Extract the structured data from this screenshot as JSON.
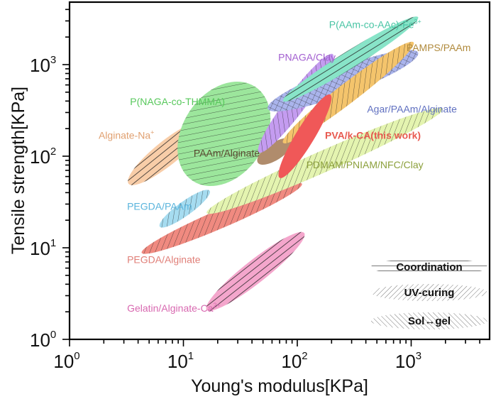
{
  "chart_data": {
    "type": "scatter",
    "subtype": "ashby-region-plot",
    "title": "",
    "xlabel": "Young's modulus[KPa]",
    "ylabel": "Tensile strength[KPa]",
    "xscale": "log",
    "yscale": "log",
    "xlim": [
      1,
      5000
    ],
    "ylim": [
      1,
      4000
    ],
    "xticks": [
      {
        "value": 1,
        "base": "10",
        "exp": "0"
      },
      {
        "value": 10,
        "base": "10",
        "exp": "1"
      },
      {
        "value": 100,
        "base": "10",
        "exp": "2"
      },
      {
        "value": 1000,
        "base": "10",
        "exp": "3"
      }
    ],
    "yticks": [
      {
        "value": 1,
        "base": "10",
        "exp": "0"
      },
      {
        "value": 10,
        "base": "10",
        "exp": "1"
      },
      {
        "value": 100,
        "base": "10",
        "exp": "2"
      },
      {
        "value": 1000,
        "base": "10",
        "exp": "3"
      }
    ],
    "grid": false,
    "legend": {
      "placement": "bottom-right",
      "entries": [
        {
          "label": "Coordination",
          "pattern": "horizontal"
        },
        {
          "label": "UV-curing",
          "pattern": "backslash"
        },
        {
          "label": "Sol↔gel",
          "pattern": "slash"
        }
      ]
    },
    "regions": [
      {
        "name": "PEGDA/Alginate",
        "label": "PEGDA/Alginate",
        "color": "#f08a80",
        "label_color": "#e07f78",
        "pattern": "backslash",
        "x_range": [
          4.3,
          110
        ],
        "y_range": [
          8.8,
          50
        ],
        "label_at": [
          3.2,
          6.8
        ]
      },
      {
        "name": "Gelatin/Alginate-Ca2+",
        "label": "Gelatin/Alginate-Ca",
        "sup": "2+",
        "color": "#f4a6cc",
        "label_color": "#d868b0",
        "pattern": "horizontal",
        "x_range": [
          16,
          115
        ],
        "y_range": [
          2.1,
          14.5
        ],
        "label_at": [
          3.2,
          2.0
        ]
      },
      {
        "name": "PEGDA/PAAm",
        "label": "PEGDA/PAAm",
        "color": "#a6dcf0",
        "label_color": "#5ab4dc",
        "pattern": "backslash",
        "x_range": [
          6.2,
          17
        ],
        "y_range": [
          17,
          42
        ],
        "label_at": [
          3.2,
          26
        ]
      },
      {
        "name": "PDMAM/PNIAM/NFC/Clay",
        "label": "PDMAM/PNIAM/NFC/Clay",
        "color": "#e4f4b0",
        "label_color": "#8ca03c",
        "pattern": "backslash",
        "x_range": [
          16,
          1900
        ],
        "y_range": [
          24,
          330
        ],
        "label_at": [
          120,
          74
        ]
      },
      {
        "name": "Alginate-Na+",
        "label": "Alginate-Na",
        "sup": "+",
        "color": "#f8cda8",
        "label_color": "#e0a070",
        "pattern": "horizontal",
        "x_range": [
          3.3,
          15.5
        ],
        "y_range": [
          50,
          235
        ],
        "label_at": [
          1.8,
          155
        ]
      },
      {
        "name": "P(NAGA-co-THMMA)",
        "label": "P(NAGA-co-THMMA)",
        "color": "#9ce69c",
        "label_color": "#58c85c",
        "pattern": "slash",
        "x_range": [
          12,
          43
        ],
        "y_range": [
          54,
          570
        ],
        "label_at": [
          3.4,
          360
        ]
      },
      {
        "name": "PAAm/Alginate",
        "label": "PAAm/Alginate",
        "color": "#b08c6c",
        "label_color": "#5a4a30",
        "pattern": "none",
        "x_range": [
          45,
          90
        ],
        "y_range": [
          85,
          150
        ],
        "label_at": [
          12.3,
          99
        ]
      },
      {
        "name": "PNAGA/Clay",
        "label": "PNAGA/Clay",
        "color": "#c49cf0",
        "label_color": "#a25ed0",
        "pattern": "backslash",
        "x_range": [
          46,
          205
        ],
        "y_range": [
          110,
          1300
        ],
        "label_at": [
          68,
          1100
        ]
      },
      {
        "name": "Agar/PAAm/Alginate",
        "label": "Agar/PAAm/Alginate",
        "color": "#aab4ec",
        "label_color": "#6070c0",
        "pattern": "crosshatch",
        "x_range": [
          55,
          1150
        ],
        "y_range": [
          330,
          1350
        ],
        "label_at": [
          410,
          300
        ]
      },
      {
        "name": "P(AAm-co-AAc)-Fe3+",
        "label": "P(AAm-co-AAc)-Fe",
        "sup": "3+",
        "color": "#88e4c8",
        "label_color": "#48c4a4",
        "pattern": "horizontal",
        "x_range": [
          75,
          1150
        ],
        "y_range": [
          400,
          3300
        ],
        "label_at": [
          190,
          2500
        ]
      },
      {
        "name": "PAMPS/PAAm",
        "label": "PAMPS/PAAm",
        "color": "#f4c46c",
        "label_color": "#b08a3c",
        "pattern": "backslash",
        "x_range": [
          75,
          1050
        ],
        "y_range": [
          140,
          1750
        ],
        "label_at": [
          910,
          1400
        ]
      },
      {
        "name": "PVA/k-CA(this work)",
        "label": "PVA/k-CA(this work)",
        "color": "#f05858",
        "label_color": "#e85a50",
        "pattern": "none",
        "bold": true,
        "x_range": [
          70,
          195
        ],
        "y_range": [
          58,
          470
        ],
        "label_at": [
          175,
          155
        ]
      }
    ]
  }
}
